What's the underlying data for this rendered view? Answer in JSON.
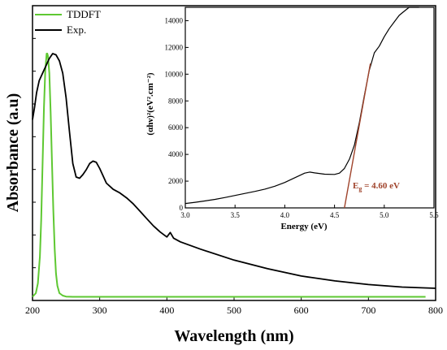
{
  "chart_data": [
    {
      "type": "line",
      "xlabel": "Wavelength (nm)",
      "ylabel": "Absorbance (a.u)",
      "xlim": [
        200,
        800
      ],
      "ylim": [
        0,
        1.0
      ],
      "xticks": [
        "200",
        "300",
        "400",
        "500",
        "600",
        "700",
        "800"
      ],
      "legend_position": "top-left",
      "series": [
        {
          "name": "TDDFT",
          "color": "#5ec832",
          "x": [
            200,
            205,
            208,
            211,
            213,
            215,
            217,
            219,
            221,
            222,
            223,
            225,
            227,
            229,
            231,
            233,
            235,
            237,
            240,
            245,
            250,
            260,
            300,
            400,
            500,
            600,
            700,
            785
          ],
          "y": [
            0.005,
            0.02,
            0.06,
            0.17,
            0.32,
            0.55,
            0.78,
            0.93,
            1.0,
            1.0,
            0.99,
            0.92,
            0.76,
            0.55,
            0.36,
            0.2,
            0.1,
            0.05,
            0.02,
            0.01,
            0.006,
            0.005,
            0.005,
            0.005,
            0.005,
            0.005,
            0.005,
            0.005
          ]
        },
        {
          "name": "Exp.",
          "color": "#000000",
          "x": [
            200,
            203,
            206,
            210,
            215,
            220,
            225,
            230,
            235,
            240,
            245,
            250,
            255,
            260,
            265,
            270,
            275,
            280,
            285,
            290,
            295,
            300,
            305,
            310,
            320,
            330,
            340,
            350,
            360,
            370,
            380,
            390,
            400,
            405,
            410,
            420,
            450,
            500,
            550,
            600,
            650,
            700,
            750,
            800
          ],
          "y": [
            0.73,
            0.78,
            0.84,
            0.89,
            0.92,
            0.95,
            0.98,
            1.0,
            0.995,
            0.97,
            0.92,
            0.82,
            0.68,
            0.55,
            0.495,
            0.49,
            0.505,
            0.525,
            0.55,
            0.56,
            0.555,
            0.53,
            0.5,
            0.47,
            0.445,
            0.43,
            0.41,
            0.385,
            0.355,
            0.325,
            0.295,
            0.27,
            0.25,
            0.268,
            0.245,
            0.23,
            0.2,
            0.155,
            0.12,
            0.09,
            0.07,
            0.055,
            0.045,
            0.04
          ]
        }
      ]
    },
    {
      "type": "line",
      "xlabel": "Energy (eV)",
      "ylabel": "(αhν)²(eV².cm⁻²)",
      "xlim": [
        3.0,
        5.5
      ],
      "ylim": [
        0,
        15000
      ],
      "xticks": [
        "3.0",
        "3.5",
        "4.0",
        "4.5",
        "5.0",
        "5.5"
      ],
      "yticks": [
        "0",
        "2000",
        "4000",
        "6000",
        "8000",
        "10000",
        "12000",
        "14000"
      ],
      "series": [
        {
          "name": "",
          "color": "#000000",
          "x": [
            3.0,
            3.1,
            3.2,
            3.3,
            3.4,
            3.5,
            3.6,
            3.7,
            3.8,
            3.9,
            4.0,
            4.1,
            4.2,
            4.25,
            4.3,
            4.4,
            4.5,
            4.55,
            4.6,
            4.65,
            4.7,
            4.75,
            4.8,
            4.85,
            4.9,
            4.95,
            5.0,
            5.05,
            5.1,
            5.15,
            5.2,
            5.25,
            5.3,
            5.35
          ],
          "y": [
            330,
            420,
            520,
            640,
            780,
            930,
            1080,
            1230,
            1400,
            1620,
            1900,
            2250,
            2600,
            2680,
            2620,
            2520,
            2500,
            2600,
            2950,
            3650,
            4700,
            6400,
            8400,
            10300,
            11600,
            12100,
            12800,
            13400,
            13900,
            14400,
            14700,
            15000,
            15000,
            15000
          ]
        },
        {
          "name": "",
          "color": "#a0442c",
          "x": [
            4.6,
            4.86
          ],
          "y": [
            0,
            10800
          ]
        }
      ],
      "annotation": {
        "prefix": "E",
        "sub": "g",
        "value": " = 4.60 eV",
        "color": "#a0442c"
      }
    }
  ]
}
